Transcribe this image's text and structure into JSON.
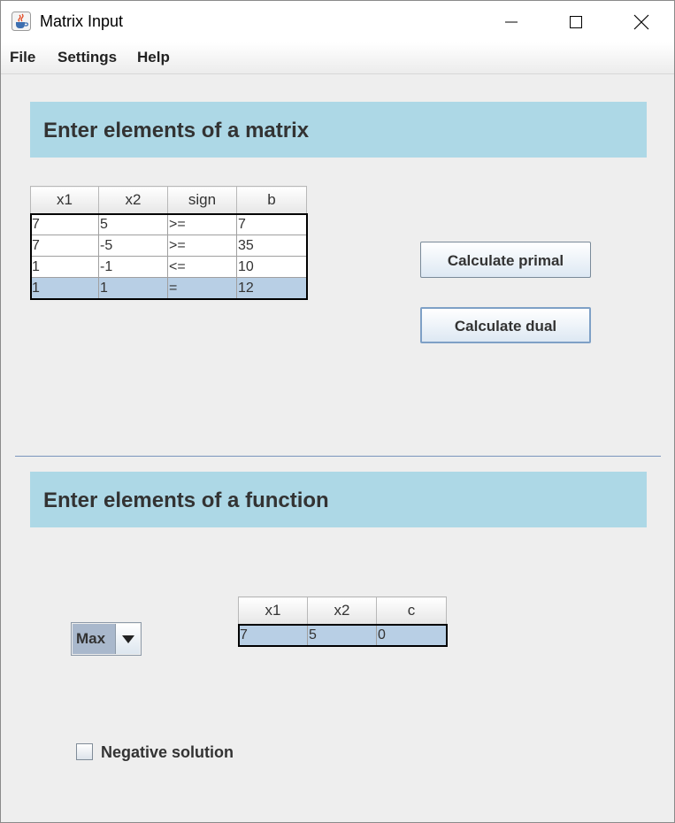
{
  "window": {
    "title": "Matrix Input"
  },
  "menu": [
    "File",
    "Settings",
    "Help"
  ],
  "matrix_section": {
    "title": "Enter elements of a matrix",
    "columns": [
      "x1",
      "x2",
      "sign",
      "b"
    ],
    "rows": [
      [
        "7",
        "5",
        ">=",
        "7"
      ],
      [
        "7",
        "-5",
        ">=",
        "35"
      ],
      [
        "1",
        "-1",
        "<=",
        "10"
      ],
      [
        "1",
        "1",
        "=",
        "12"
      ]
    ],
    "selected_row": 3
  },
  "buttons": {
    "calculate_primal": "Calculate primal",
    "calculate_dual": "Calculate dual"
  },
  "function_section": {
    "title": "Enter elements of a function",
    "objective": "Max",
    "columns": [
      "x1",
      "x2",
      "c"
    ],
    "rows": [
      [
        "7",
        "5",
        "0"
      ]
    ]
  },
  "negative_solution": {
    "label": "Negative solution",
    "checked": false
  },
  "icons": [
    "java-cup-icon",
    "minimize-icon",
    "maximize-icon",
    "close-icon",
    "chevron-down-icon"
  ],
  "colors": {
    "header_bg": "#add8e6",
    "selection": "#b8cfe5",
    "separator": "#7b95bd"
  }
}
